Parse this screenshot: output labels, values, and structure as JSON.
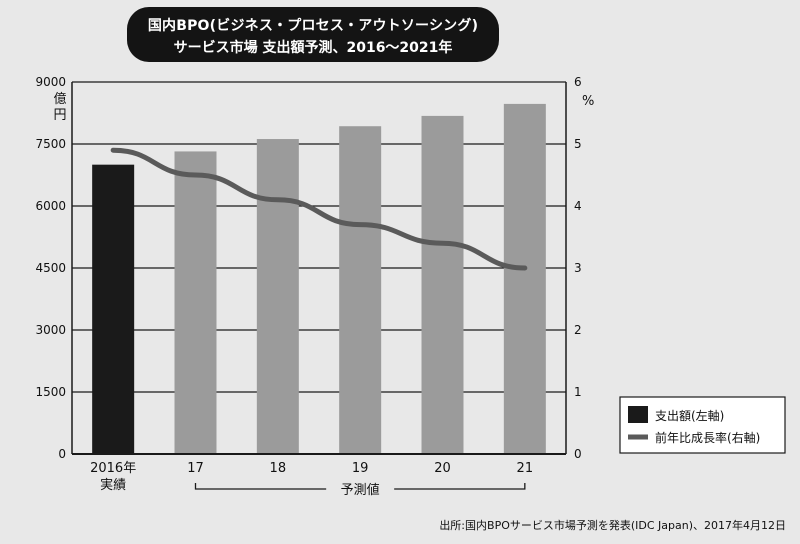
{
  "title": {
    "line1": "国内BPO(ビジネス・プロセス・アウトソーシング)",
    "line2": "サービス市場 支出額予測、2016〜2021年"
  },
  "chart_data": {
    "type": "bar",
    "categories": [
      "2016年\n実績",
      "17",
      "18",
      "19",
      "20",
      "21"
    ],
    "series": [
      {
        "name": "支出額(左軸)",
        "type": "bar",
        "axis": "left",
        "values": [
          7000,
          7320,
          7620,
          7930,
          8180,
          8470
        ],
        "colors": [
          "#1a1a1a",
          "#9b9b9b",
          "#9b9b9b",
          "#9b9b9b",
          "#9b9b9b",
          "#9b9b9b"
        ]
      },
      {
        "name": "前年比成長率(右軸)",
        "type": "line",
        "axis": "right",
        "values": [
          4.9,
          4.5,
          4.1,
          3.7,
          3.4,
          3.0
        ],
        "color": "#5a5a5a"
      }
    ],
    "y_left": {
      "ylim": [
        0,
        9000
      ],
      "ticks": [
        0,
        1500,
        3000,
        4500,
        6000,
        7500,
        9000
      ],
      "unit": "億\n円"
    },
    "y_right": {
      "ylim": [
        0,
        6
      ],
      "ticks": [
        0,
        1,
        2,
        3,
        4,
        5,
        6
      ],
      "unit": "%"
    },
    "bracket_label": "予測値",
    "grid": true,
    "legend_position": "bottom-right"
  },
  "source": "出所:国内BPOサービス市場予測を発表(IDC Japan)、2017年4月12日"
}
